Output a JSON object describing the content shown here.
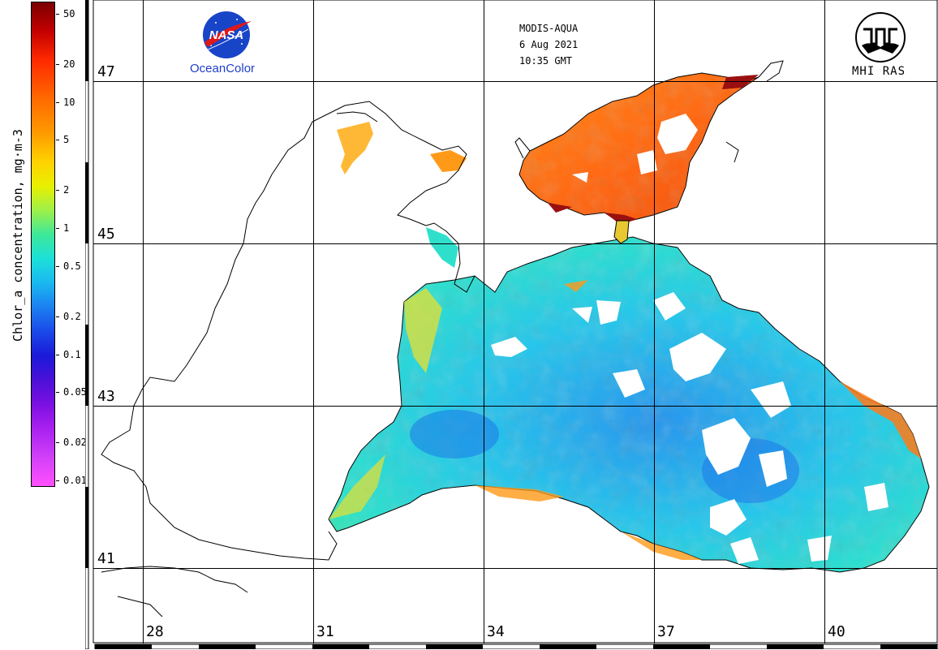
{
  "colorbar": {
    "title": "Chlor_a concentration, mg·m-3",
    "ticks": [
      "50",
      "20",
      "10",
      "5",
      "2",
      "1",
      "0.5",
      "0.2",
      "0.1",
      "0.05",
      "0.02",
      "0.01"
    ]
  },
  "map": {
    "latitudes": [
      "47",
      "45",
      "43",
      "41"
    ],
    "longitudes": [
      "28",
      "31",
      "34",
      "37",
      "40"
    ],
    "mission": "MODIS-AQUA",
    "date": "6 Aug 2021",
    "time": "10:35 GMT",
    "nasa_logo_text": "NASA",
    "ocean_color_label": "OceanColor",
    "institute_label": "MHI RAS"
  },
  "colors": {
    "very_high": "#b01010",
    "high": "#ff7a18",
    "mid": "#e8e030",
    "low": "#2ad8e0",
    "lower": "#1aa8f0",
    "lowest": "#1a6ae8",
    "land": "#ffffff",
    "coast": "#000000"
  }
}
